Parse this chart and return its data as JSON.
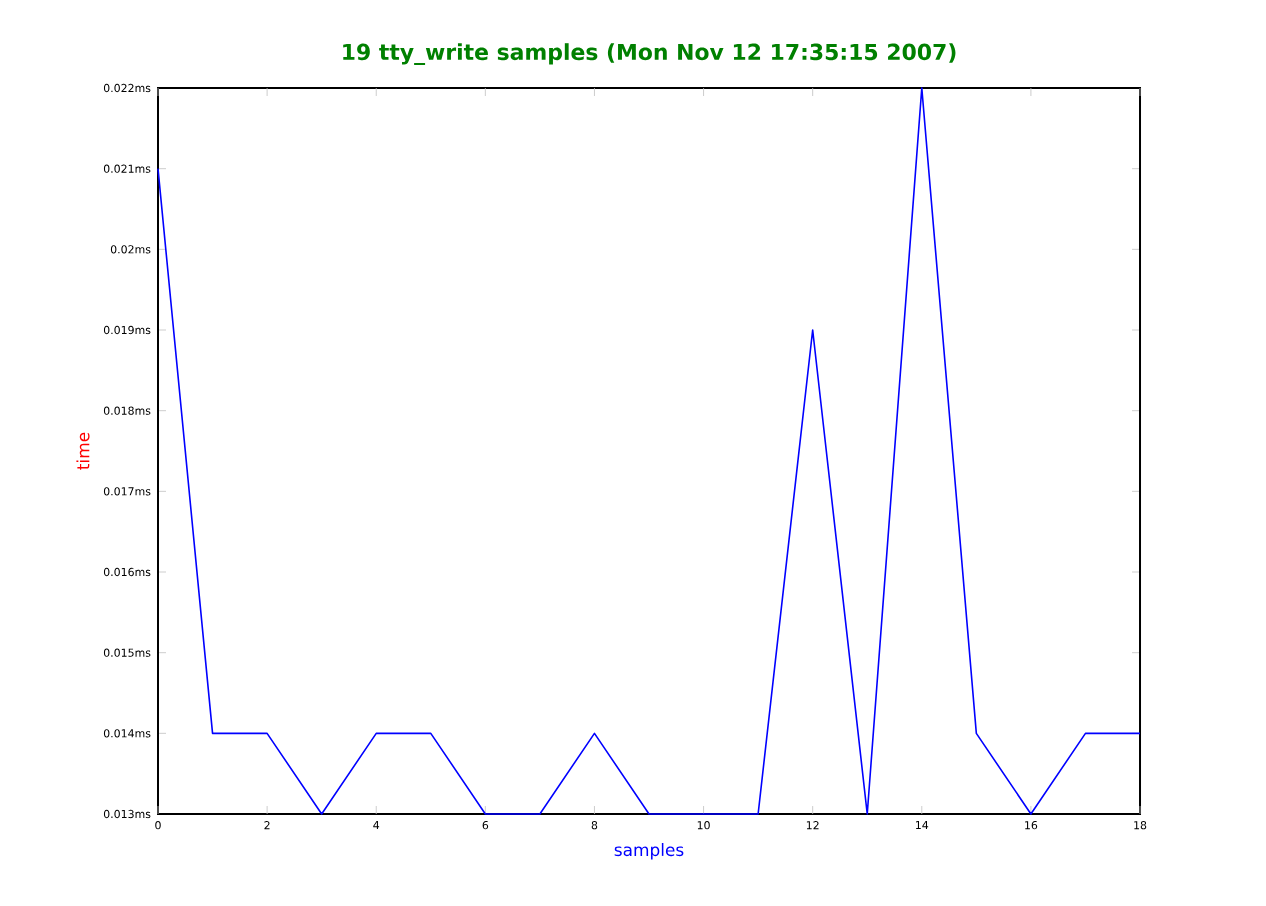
{
  "chart_data": {
    "type": "line",
    "title": "19 tty_write samples (Mon Nov 12 17:35:15 2007)",
    "xlabel": "samples",
    "ylabel": "time",
    "x": [
      0,
      1,
      2,
      3,
      4,
      5,
      6,
      7,
      8,
      9,
      10,
      11,
      12,
      13,
      14,
      15,
      16,
      17,
      18
    ],
    "series": [
      {
        "color": "#0000ff",
        "values": [
          0.021,
          0.014,
          0.014,
          0.013,
          0.014,
          0.014,
          0.013,
          0.013,
          0.014,
          0.013,
          0.013,
          0.013,
          0.019,
          0.013,
          0.022,
          0.014,
          0.013,
          0.014,
          0.014
        ]
      }
    ],
    "xlim": [
      0,
      18
    ],
    "xticks": [
      0,
      2,
      4,
      6,
      8,
      10,
      12,
      14,
      16,
      18
    ],
    "ylim": [
      0.013,
      0.022
    ],
    "yticks": [
      {
        "value": 0.013,
        "label": "0.013ms"
      },
      {
        "value": 0.014,
        "label": "0.014ms"
      },
      {
        "value": 0.015,
        "label": "0.015ms"
      },
      {
        "value": 0.016,
        "label": "0.016ms"
      },
      {
        "value": 0.017,
        "label": "0.017ms"
      },
      {
        "value": 0.018,
        "label": "0.018ms"
      },
      {
        "value": 0.019,
        "label": "0.019ms"
      },
      {
        "value": 0.02,
        "label": "0.02ms"
      },
      {
        "value": 0.021,
        "label": "0.021ms"
      },
      {
        "value": 0.022,
        "label": "0.022ms"
      }
    ]
  }
}
